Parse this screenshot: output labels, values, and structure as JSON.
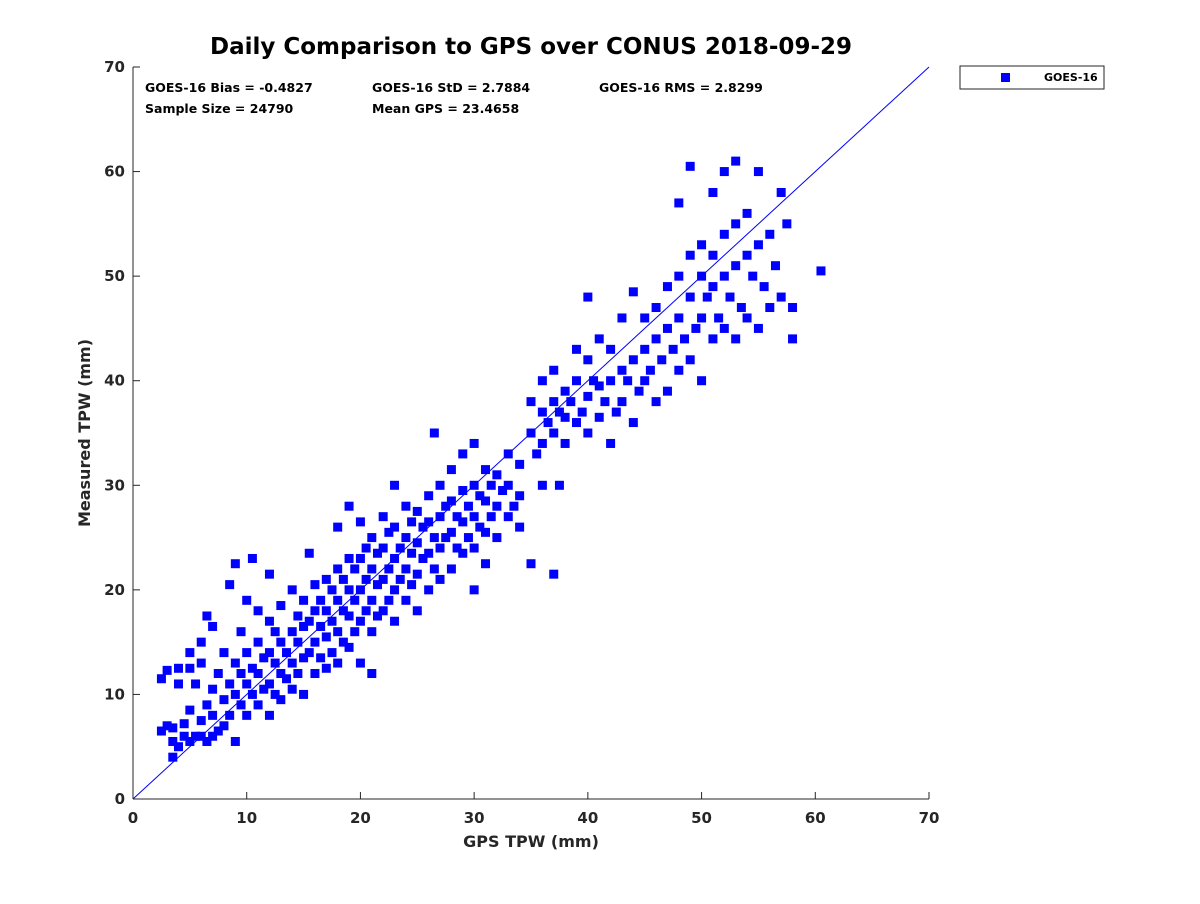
{
  "chart_data": {
    "type": "scatter",
    "title": "Daily Comparison to GPS over CONUS 2018-09-29",
    "xlabel": "GPS TPW (mm)",
    "ylabel": "Measured TPW (mm)",
    "xlim": [
      0,
      70
    ],
    "ylim": [
      0,
      70
    ],
    "xticks": [
      "0",
      "10",
      "20",
      "30",
      "40",
      "50",
      "60",
      "70"
    ],
    "yticks": [
      "0",
      "10",
      "20",
      "30",
      "40",
      "50",
      "60",
      "70"
    ],
    "grid": false,
    "legend_position": "outside-top-right",
    "reference_line": {
      "from": [
        0,
        0
      ],
      "to": [
        70,
        70
      ],
      "color": "#0000ff"
    },
    "stats": [
      "GOES-16 Bias = -0.4827",
      "GOES-16 StD = 2.7884",
      "GOES-16 RMS = 2.8299",
      "Sample Size = 24790",
      "Mean GPS = 23.4658"
    ],
    "series": [
      {
        "name": "GOES-16",
        "color": "#0000ff",
        "marker": "square",
        "points": [
          [
            2.5,
            6.5
          ],
          [
            2.5,
            11.5
          ],
          [
            3,
            7
          ],
          [
            3,
            12.3
          ],
          [
            3.5,
            4
          ],
          [
            3.5,
            5.5
          ],
          [
            3.5,
            6.8
          ],
          [
            4,
            5
          ],
          [
            4,
            11
          ],
          [
            4,
            12.5
          ],
          [
            4.5,
            6
          ],
          [
            4.5,
            7.2
          ],
          [
            5,
            5.5
          ],
          [
            5,
            8.5
          ],
          [
            5,
            12.5
          ],
          [
            5,
            14
          ],
          [
            5.5,
            6
          ],
          [
            5.5,
            11
          ],
          [
            6,
            6
          ],
          [
            6,
            7.5
          ],
          [
            6,
            13
          ],
          [
            6,
            15
          ],
          [
            6.5,
            5.5
          ],
          [
            6.5,
            9
          ],
          [
            6.5,
            17.5
          ],
          [
            7,
            6
          ],
          [
            7,
            8
          ],
          [
            7,
            10.5
          ],
          [
            7,
            16.5
          ],
          [
            7.5,
            6.5
          ],
          [
            7.5,
            12
          ],
          [
            8,
            7
          ],
          [
            8,
            9.5
          ],
          [
            8,
            14
          ],
          [
            8.5,
            8
          ],
          [
            8.5,
            11
          ],
          [
            8.5,
            20.5
          ],
          [
            9,
            5.5
          ],
          [
            9,
            10
          ],
          [
            9,
            13
          ],
          [
            9,
            22.5
          ],
          [
            9.5,
            9
          ],
          [
            9.5,
            12
          ],
          [
            9.5,
            16
          ],
          [
            10,
            8
          ],
          [
            10,
            11
          ],
          [
            10,
            14
          ],
          [
            10,
            19
          ],
          [
            10.5,
            10
          ],
          [
            10.5,
            12.5
          ],
          [
            10.5,
            23
          ],
          [
            11,
            9
          ],
          [
            11,
            12
          ],
          [
            11,
            15
          ],
          [
            11,
            18
          ],
          [
            11.5,
            10.5
          ],
          [
            11.5,
            13.5
          ],
          [
            12,
            8
          ],
          [
            12,
            11
          ],
          [
            12,
            14
          ],
          [
            12,
            17
          ],
          [
            12,
            21.5
          ],
          [
            12.5,
            10
          ],
          [
            12.5,
            13
          ],
          [
            12.5,
            16
          ],
          [
            13,
            9.5
          ],
          [
            13,
            12
          ],
          [
            13,
            15
          ],
          [
            13,
            18.5
          ],
          [
            13.5,
            11.5
          ],
          [
            13.5,
            14
          ],
          [
            14,
            10.5
          ],
          [
            14,
            13
          ],
          [
            14,
            16
          ],
          [
            14,
            20
          ],
          [
            14.5,
            12
          ],
          [
            14.5,
            15
          ],
          [
            14.5,
            17.5
          ],
          [
            15,
            10
          ],
          [
            15,
            13.5
          ],
          [
            15,
            16.5
          ],
          [
            15,
            19
          ],
          [
            15.5,
            14
          ],
          [
            15.5,
            17
          ],
          [
            15.5,
            23.5
          ],
          [
            16,
            12
          ],
          [
            16,
            15
          ],
          [
            16,
            18
          ],
          [
            16,
            20.5
          ],
          [
            16.5,
            13.5
          ],
          [
            16.5,
            16.5
          ],
          [
            16.5,
            19
          ],
          [
            17,
            12.5
          ],
          [
            17,
            15.5
          ],
          [
            17,
            18
          ],
          [
            17,
            21
          ],
          [
            17.5,
            14
          ],
          [
            17.5,
            17
          ],
          [
            17.5,
            20
          ],
          [
            18,
            13
          ],
          [
            18,
            16
          ],
          [
            18,
            19
          ],
          [
            18,
            22
          ],
          [
            18,
            26
          ],
          [
            18.5,
            15
          ],
          [
            18.5,
            18
          ],
          [
            18.5,
            21
          ],
          [
            19,
            14.5
          ],
          [
            19,
            17.5
          ],
          [
            19,
            20
          ],
          [
            19,
            23
          ],
          [
            19,
            28
          ],
          [
            19.5,
            16
          ],
          [
            19.5,
            19
          ],
          [
            19.5,
            22
          ],
          [
            20,
            13
          ],
          [
            20,
            17
          ],
          [
            20,
            20
          ],
          [
            20,
            23
          ],
          [
            20,
            26.5
          ],
          [
            20.5,
            18
          ],
          [
            20.5,
            21
          ],
          [
            20.5,
            24
          ],
          [
            21,
            12
          ],
          [
            21,
            16
          ],
          [
            21,
            19
          ],
          [
            21,
            22
          ],
          [
            21,
            25
          ],
          [
            21.5,
            17.5
          ],
          [
            21.5,
            20.5
          ],
          [
            21.5,
            23.5
          ],
          [
            22,
            18
          ],
          [
            22,
            21
          ],
          [
            22,
            24
          ],
          [
            22,
            27
          ],
          [
            22.5,
            19
          ],
          [
            22.5,
            22
          ],
          [
            22.5,
            25.5
          ],
          [
            23,
            17
          ],
          [
            23,
            20
          ],
          [
            23,
            23
          ],
          [
            23,
            26
          ],
          [
            23,
            30
          ],
          [
            23.5,
            21
          ],
          [
            23.5,
            24
          ],
          [
            24,
            19
          ],
          [
            24,
            22
          ],
          [
            24,
            25
          ],
          [
            24,
            28
          ],
          [
            24.5,
            20.5
          ],
          [
            24.5,
            23.5
          ],
          [
            24.5,
            26.5
          ],
          [
            25,
            18
          ],
          [
            25,
            21.5
          ],
          [
            25,
            24.5
          ],
          [
            25,
            27.5
          ],
          [
            25.5,
            23
          ],
          [
            25.5,
            26
          ],
          [
            26,
            20
          ],
          [
            26,
            23.5
          ],
          [
            26,
            26.5
          ],
          [
            26,
            29
          ],
          [
            26.5,
            22
          ],
          [
            26.5,
            25
          ],
          [
            26.5,
            35
          ],
          [
            27,
            21
          ],
          [
            27,
            24
          ],
          [
            27,
            27
          ],
          [
            27,
            30
          ],
          [
            27.5,
            25
          ],
          [
            27.5,
            28
          ],
          [
            28,
            22
          ],
          [
            28,
            25.5
          ],
          [
            28,
            28.5
          ],
          [
            28,
            31.5
          ],
          [
            28.5,
            24
          ],
          [
            28.5,
            27
          ],
          [
            29,
            23.5
          ],
          [
            29,
            26.5
          ],
          [
            29,
            29.5
          ],
          [
            29,
            33
          ],
          [
            29.5,
            25
          ],
          [
            29.5,
            28
          ],
          [
            30,
            20
          ],
          [
            30,
            24
          ],
          [
            30,
            27
          ],
          [
            30,
            30
          ],
          [
            30,
            34
          ],
          [
            30.5,
            26
          ],
          [
            30.5,
            29
          ],
          [
            31,
            22.5
          ],
          [
            31,
            25.5
          ],
          [
            31,
            28.5
          ],
          [
            31,
            31.5
          ],
          [
            31.5,
            27
          ],
          [
            31.5,
            30
          ],
          [
            32,
            25
          ],
          [
            32,
            28
          ],
          [
            32,
            31
          ],
          [
            32.5,
            29.5
          ],
          [
            33,
            27
          ],
          [
            33,
            30
          ],
          [
            33,
            33
          ],
          [
            33.5,
            28
          ],
          [
            34,
            26
          ],
          [
            34,
            29
          ],
          [
            34,
            32
          ],
          [
            35,
            22.5
          ],
          [
            35,
            35
          ],
          [
            35,
            38
          ],
          [
            35.5,
            33
          ],
          [
            36,
            30
          ],
          [
            36,
            34
          ],
          [
            36,
            37
          ],
          [
            36,
            40
          ],
          [
            36.5,
            36
          ],
          [
            37,
            21.5
          ],
          [
            37,
            35
          ],
          [
            37,
            38
          ],
          [
            37,
            41
          ],
          [
            37.5,
            30
          ],
          [
            37.5,
            37
          ],
          [
            38,
            34
          ],
          [
            38,
            36.5
          ],
          [
            38,
            39
          ],
          [
            38.5,
            38
          ],
          [
            39,
            36
          ],
          [
            39,
            40
          ],
          [
            39,
            43
          ],
          [
            39.5,
            37
          ],
          [
            40,
            35
          ],
          [
            40,
            38.5
          ],
          [
            40,
            42
          ],
          [
            40,
            48
          ],
          [
            40.5,
            40
          ],
          [
            41,
            36.5
          ],
          [
            41,
            39.5
          ],
          [
            41,
            44
          ],
          [
            41.5,
            38
          ],
          [
            42,
            34
          ],
          [
            42,
            40
          ],
          [
            42,
            43
          ],
          [
            42.5,
            37
          ],
          [
            43,
            38
          ],
          [
            43,
            41
          ],
          [
            43,
            46
          ],
          [
            43.5,
            40
          ],
          [
            44,
            36
          ],
          [
            44,
            42
          ],
          [
            44,
            48.5
          ],
          [
            44.5,
            39
          ],
          [
            45,
            40
          ],
          [
            45,
            43
          ],
          [
            45,
            46
          ],
          [
            45.5,
            41
          ],
          [
            46,
            38
          ],
          [
            46,
            44
          ],
          [
            46,
            47
          ],
          [
            46.5,
            42
          ],
          [
            47,
            39
          ],
          [
            47,
            45
          ],
          [
            47,
            49
          ],
          [
            47.5,
            43
          ],
          [
            48,
            41
          ],
          [
            48,
            46
          ],
          [
            48,
            50
          ],
          [
            48,
            57
          ],
          [
            48.5,
            44
          ],
          [
            49,
            42
          ],
          [
            49,
            48
          ],
          [
            49,
            52
          ],
          [
            49,
            60.5
          ],
          [
            49.5,
            45
          ],
          [
            50,
            40
          ],
          [
            50,
            46
          ],
          [
            50,
            50
          ],
          [
            50,
            53
          ],
          [
            50.5,
            48
          ],
          [
            51,
            44
          ],
          [
            51,
            49
          ],
          [
            51,
            52
          ],
          [
            51,
            58
          ],
          [
            51.5,
            46
          ],
          [
            52,
            45
          ],
          [
            52,
            50
          ],
          [
            52,
            54
          ],
          [
            52,
            60
          ],
          [
            52.5,
            48
          ],
          [
            53,
            44
          ],
          [
            53,
            51
          ],
          [
            53,
            55
          ],
          [
            53,
            61
          ],
          [
            53.5,
            47
          ],
          [
            54,
            46
          ],
          [
            54,
            52
          ],
          [
            54,
            56
          ],
          [
            54.5,
            50
          ],
          [
            55,
            45
          ],
          [
            55,
            53
          ],
          [
            55,
            60
          ],
          [
            55.5,
            49
          ],
          [
            56,
            47
          ],
          [
            56,
            54
          ],
          [
            56.5,
            51
          ],
          [
            57,
            48
          ],
          [
            57,
            58
          ],
          [
            57.5,
            55
          ],
          [
            58,
            44
          ],
          [
            58,
            47
          ],
          [
            60.5,
            50.5
          ]
        ]
      }
    ]
  }
}
